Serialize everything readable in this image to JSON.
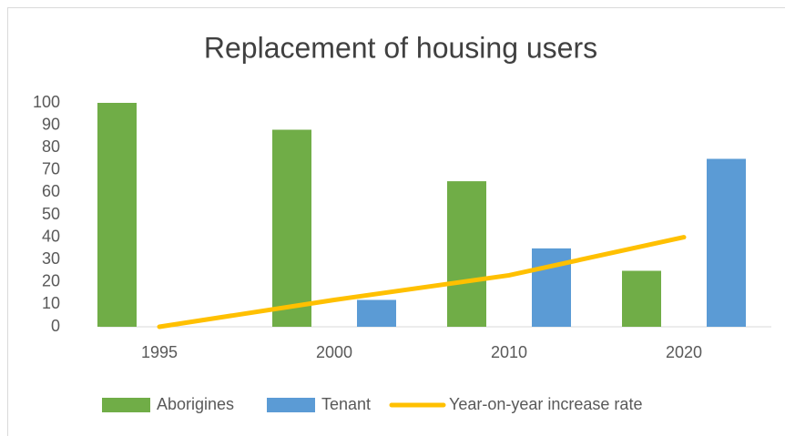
{
  "chart_data": {
    "type": "bar",
    "title": "Replacement of housing users",
    "categories": [
      "1995",
      "2000",
      "2010",
      "2020"
    ],
    "series": [
      {
        "name": "Aborigines",
        "color": "#70ad47",
        "values": [
          100,
          88,
          65,
          25
        ]
      },
      {
        "name": "Tenant",
        "color": "#5b9bd5",
        "values": [
          0,
          12,
          35,
          75
        ]
      },
      {
        "name": "Year-on-year increase rate",
        "type": "line",
        "color": "#ffc000",
        "values": [
          0,
          12,
          23,
          40
        ]
      }
    ],
    "ylim": [
      0,
      100
    ],
    "yticks": [
      0,
      10,
      20,
      30,
      40,
      50,
      60,
      70,
      80,
      90,
      100
    ],
    "grid": false,
    "legend": "bottom"
  }
}
